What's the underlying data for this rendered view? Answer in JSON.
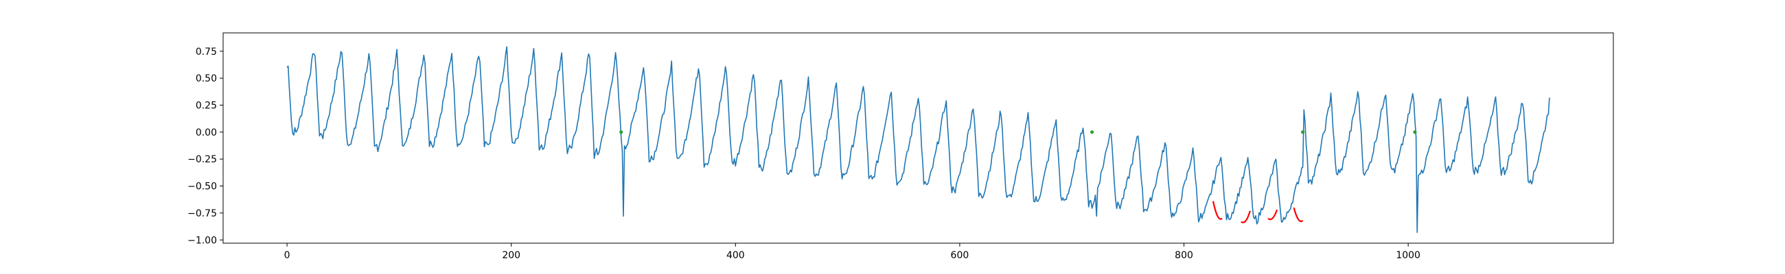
{
  "chart_data": {
    "type": "line",
    "title": "",
    "xlabel": "",
    "ylabel": "",
    "xlim": [
      -57,
      1183
    ],
    "ylim": [
      -1.03,
      0.92
    ],
    "x_ticks": [
      0,
      200,
      400,
      600,
      800,
      1000
    ],
    "x_tick_labels": [
      "0",
      "200",
      "400",
      "600",
      "800",
      "1000"
    ],
    "y_ticks": [
      0.75,
      0.5,
      0.25,
      0.0,
      -0.25,
      -0.5,
      -0.75,
      -1.0
    ],
    "y_tick_labels": [
      "0.75",
      "0.50",
      "0.25",
      "0.00",
      "−0.25",
      "−0.50",
      "−0.75",
      "−1.00"
    ],
    "grid": false,
    "legend": "none",
    "series": [
      {
        "role": "signal",
        "color": "#1f77b4",
        "x_start": 0,
        "x_end": 1126,
        "start_value": 0.6,
        "end_value": 0.32,
        "cycle_length": 24.5,
        "cycle_peaks": [
          0.78,
          0.8,
          0.74,
          0.72,
          0.76,
          0.74,
          0.74,
          0.75,
          0.78,
          0.73,
          0.75,
          0.78,
          0.62,
          0.6,
          0.63,
          0.65,
          0.57,
          0.55,
          0.51,
          0.46,
          0.45,
          0.42,
          0.37,
          0.32,
          0.27,
          0.22,
          0.18,
          0.14,
          0.09,
          0.05,
          0.0,
          -0.06,
          -0.15,
          -0.19,
          -0.24,
          -0.25,
          -0.28,
          0.32,
          0.38,
          0.4,
          0.37,
          0.35,
          0.33,
          0.3,
          0.31,
          0.3,
          0.32
        ],
        "cycle_troughs": [
          -0.02,
          -0.04,
          -0.12,
          -0.15,
          -0.12,
          -0.12,
          -0.12,
          -0.14,
          -0.11,
          -0.15,
          -0.19,
          -0.22,
          -0.15,
          -0.25,
          -0.26,
          -0.3,
          -0.3,
          -0.35,
          -0.4,
          -0.4,
          -0.42,
          -0.45,
          -0.47,
          -0.5,
          -0.55,
          -0.6,
          -0.62,
          -0.65,
          -0.66,
          -0.68,
          -0.7,
          -0.72,
          -0.78,
          -0.8,
          -0.8,
          -0.82,
          -0.82,
          -0.45,
          -0.4,
          -0.38,
          -0.37,
          -0.38,
          -0.38,
          -0.37,
          -0.38,
          -0.45,
          -0.43
        ],
        "spikes": [
          {
            "x": 300,
            "y": -0.78
          },
          {
            "x": 722,
            "y": -0.78
          },
          {
            "x": 1008,
            "y": -0.93
          }
        ]
      }
    ],
    "markers": [
      {
        "role": "highlight-segment",
        "color": "#ff0000",
        "x_from": 826,
        "x_to": 834,
        "y_from": -0.64,
        "y_to": -0.8
      },
      {
        "role": "highlight-segment",
        "color": "#ff0000",
        "x_from": 851,
        "x_to": 859,
        "y_from": -0.83,
        "y_to": -0.73
      },
      {
        "role": "highlight-segment",
        "color": "#ff0000",
        "x_from": 875,
        "x_to": 883,
        "y_from": -0.8,
        "y_to": -0.72
      },
      {
        "role": "highlight-segment",
        "color": "#ff0000",
        "x_from": 898,
        "x_to": 906,
        "y_from": -0.7,
        "y_to": -0.82
      },
      {
        "role": "point",
        "color": "#2ca02c",
        "x": 298,
        "y": 0.0
      },
      {
        "role": "point",
        "color": "#2ca02c",
        "x": 718,
        "y": 0.0
      },
      {
        "role": "point",
        "color": "#2ca02c",
        "x": 906,
        "y": 0.0
      },
      {
        "role": "point",
        "color": "#2ca02c",
        "x": 1006,
        "y": 0.0
      }
    ]
  }
}
